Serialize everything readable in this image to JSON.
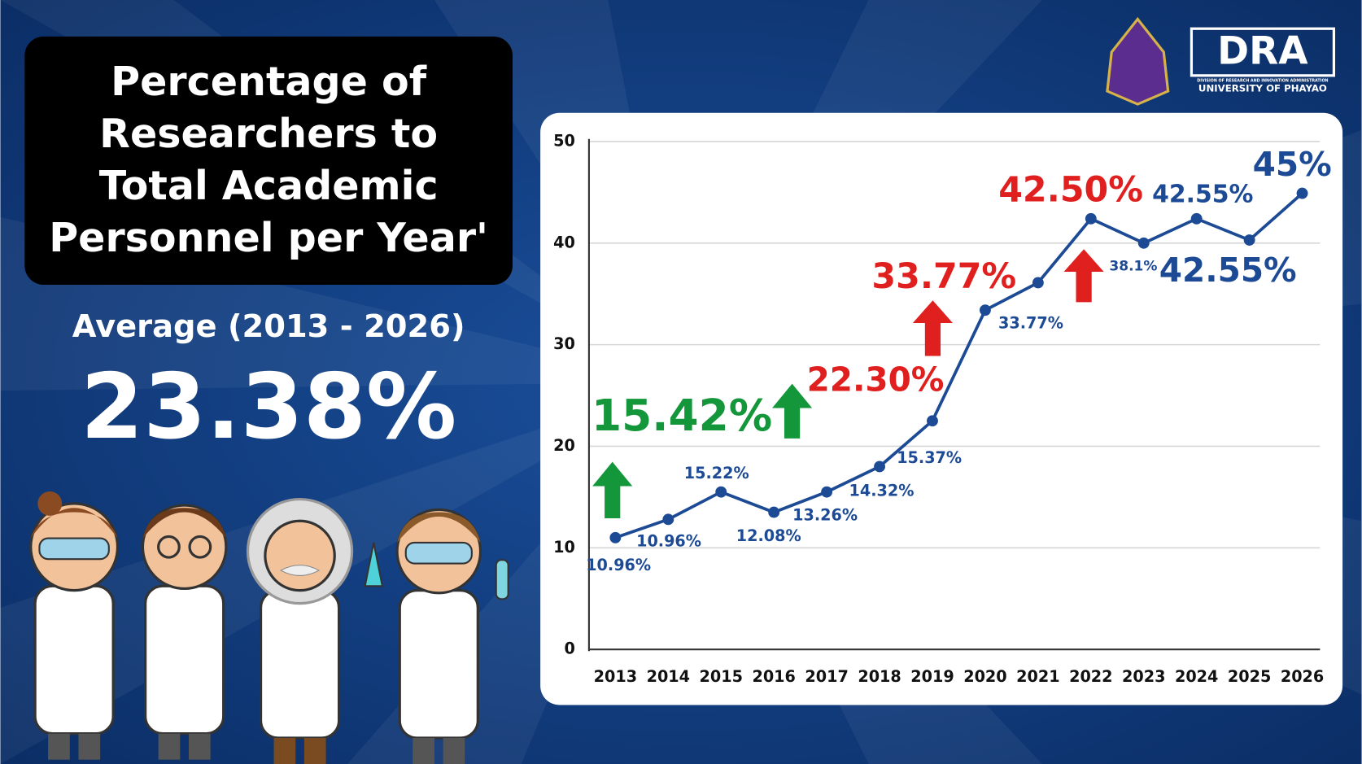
{
  "header": {
    "title_lines": [
      "Percentage of",
      "Researchers to",
      "Total Academic",
      "Personnel per Year'"
    ],
    "average_label": "Average (2013 - 2026)",
    "average_value": "23.38%"
  },
  "logo": {
    "name": "DRA",
    "division": "DIVISION OF RESEARCH AND INNOVATION ADMINISTRATION",
    "university": "UNIVERSITY OF PHAYAO"
  },
  "chart_data": {
    "type": "line",
    "categories": [
      "2013",
      "2014",
      "2015",
      "2016",
      "2017",
      "2018",
      "2019",
      "2020",
      "2021",
      "2022",
      "2023",
      "2024",
      "2025",
      "2026"
    ],
    "values": [
      11,
      12.8,
      15.5,
      13.5,
      15.5,
      18,
      22.5,
      33.4,
      36.1,
      42.4,
      40,
      42.4,
      40.3,
      44.9
    ],
    "color": "#1c4a94",
    "ylim": [
      0,
      50
    ],
    "yticks": [
      0,
      10,
      20,
      30,
      40,
      50
    ],
    "grid": true,
    "annotations": [
      {
        "text": "10.96%",
        "color": "#1c4a94"
      },
      {
        "text": "10.96%",
        "color": "#1c4a94"
      },
      {
        "text": "15.22%",
        "color": "#1c4a94"
      },
      {
        "text": "12.08%",
        "color": "#1c4a94"
      },
      {
        "text": "13.26%",
        "color": "#1c4a94"
      },
      {
        "text": "14.32%",
        "color": "#1c4a94"
      },
      {
        "text": "15.37%",
        "color": "#1c4a94"
      },
      {
        "text": "33.77%",
        "color": "#1c4a94"
      },
      {
        "text": "38.1%",
        "color": "#1c4a94"
      },
      {
        "text": "42.55%",
        "color": "#1c4a94"
      },
      {
        "text": "42.55%",
        "color": "#1c4a94"
      },
      {
        "text": "45%",
        "color": "#1c4a94"
      },
      {
        "text": "15.42%",
        "color": "#14973a"
      },
      {
        "text": "22.30%",
        "color": "#e0201e"
      },
      {
        "text": "33.77%",
        "color": "#e0201e"
      },
      {
        "text": "42.50%",
        "color": "#e0201e"
      }
    ]
  }
}
